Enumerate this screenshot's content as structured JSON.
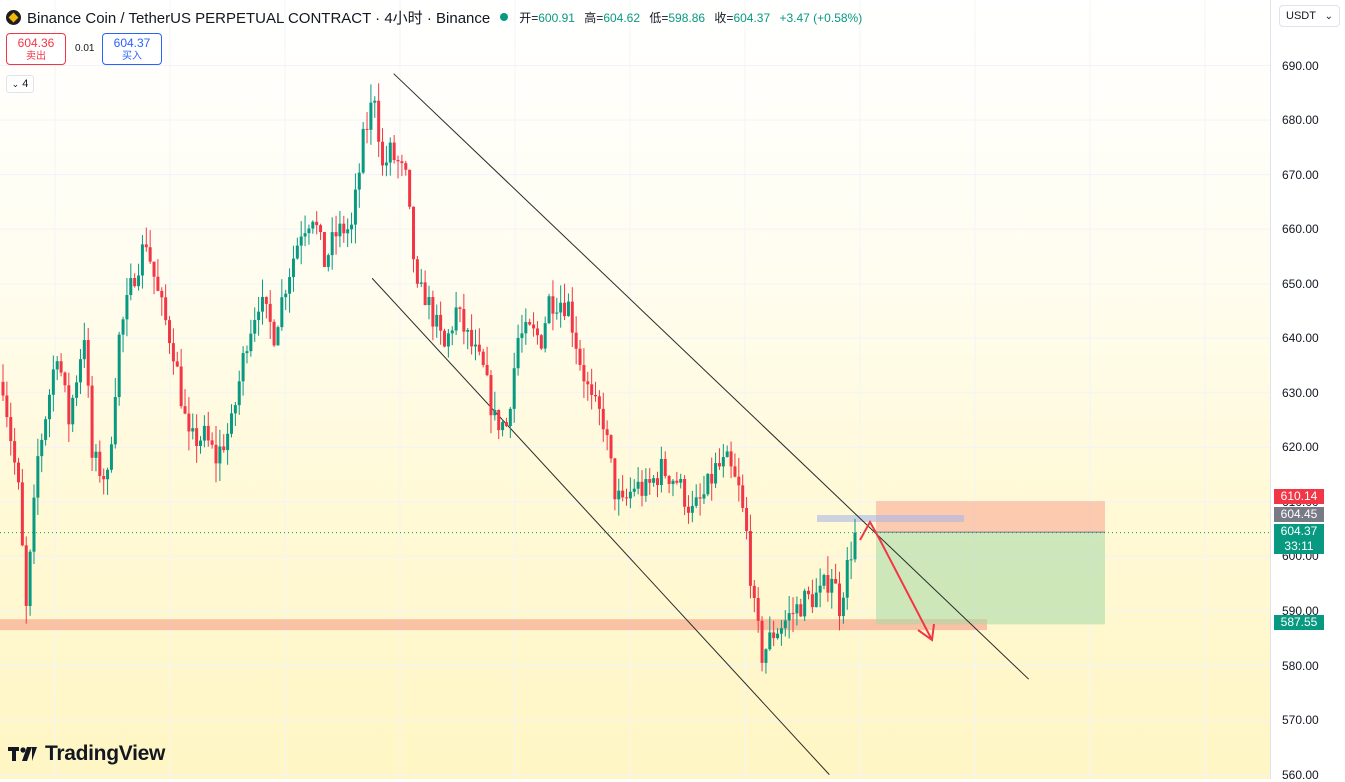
{
  "header": {
    "symbol_title": "Binance Coin / TetherUS PERPETUAL CONTRACT · 4小时 · Binance",
    "open_label": "开=",
    "open_value": "600.91",
    "high_label": "高=",
    "high_value": "604.62",
    "low_label": "低=",
    "low_value": "598.86",
    "close_label": "收=",
    "close_value": "604.37",
    "change": "+3.47 (+0.58%)"
  },
  "trade": {
    "sell_price": "604.36",
    "sell_label": "卖出",
    "spread": "0.01",
    "buy_price": "604.37",
    "buy_label": "买入"
  },
  "indicator_toggle": "4",
  "currency_select": "USDT",
  "price_labels": {
    "stop": "610.14",
    "entry": "604.45",
    "last": "604.37",
    "countdown": "33:11",
    "target": "587.55"
  },
  "logo_text": "TradingView",
  "colors": {
    "up": "#089981",
    "down": "#f23645",
    "accent": "#2962ff"
  },
  "chart_data": {
    "type": "candlestick",
    "timeframe": "4小时",
    "ylim": [
      560,
      693
    ],
    "y_ticks": [
      690,
      680,
      670,
      660,
      650,
      640,
      630,
      620,
      610,
      600,
      590,
      580,
      570,
      560
    ],
    "waypoints": [
      [
        0,
        632
      ],
      [
        4,
        612
      ],
      [
        6,
        590
      ],
      [
        9,
        618
      ],
      [
        14,
        638
      ],
      [
        17,
        625
      ],
      [
        21,
        641
      ],
      [
        23,
        618
      ],
      [
        27,
        614
      ],
      [
        30,
        640
      ],
      [
        34,
        652
      ],
      [
        37,
        658
      ],
      [
        40,
        648
      ],
      [
        44,
        638
      ],
      [
        48,
        621
      ],
      [
        52,
        622
      ],
      [
        55,
        618
      ],
      [
        59,
        624
      ],
      [
        63,
        640
      ],
      [
        66,
        647
      ],
      [
        70,
        641
      ],
      [
        73,
        650
      ],
      [
        77,
        660
      ],
      [
        80,
        663
      ],
      [
        83,
        654
      ],
      [
        86,
        659
      ],
      [
        88,
        660
      ],
      [
        90,
        660
      ],
      [
        93,
        676
      ],
      [
        96,
        685
      ],
      [
        98,
        671
      ],
      [
        100,
        674
      ],
      [
        102,
        672
      ],
      [
        104,
        669
      ],
      [
        107,
        648
      ],
      [
        109,
        648
      ],
      [
        112,
        642
      ],
      [
        114,
        638
      ],
      [
        117,
        645
      ],
      [
        120,
        640
      ],
      [
        124,
        634
      ],
      [
        127,
        625
      ],
      [
        130,
        624
      ],
      [
        133,
        640
      ],
      [
        136,
        641
      ],
      [
        139,
        640
      ],
      [
        141,
        647
      ],
      [
        144,
        647
      ],
      [
        146,
        646
      ],
      [
        149,
        636
      ],
      [
        152,
        628
      ],
      [
        155,
        625
      ],
      [
        158,
        612
      ],
      [
        160,
        609
      ],
      [
        163,
        613
      ],
      [
        166,
        612
      ],
      [
        170,
        616
      ],
      [
        174,
        614
      ],
      [
        178,
        608
      ],
      [
        181,
        611
      ],
      [
        184,
        616
      ],
      [
        187,
        617
      ],
      [
        190,
        612
      ],
      [
        192,
        604
      ],
      [
        194,
        590
      ],
      [
        196,
        582
      ],
      [
        199,
        586
      ],
      [
        203,
        589
      ],
      [
        207,
        592
      ],
      [
        211,
        593
      ],
      [
        214,
        597
      ],
      [
        216,
        591
      ],
      [
        218,
        598
      ],
      [
        220,
        604.37
      ]
    ],
    "support_zone": [
      586.5,
      588.5
    ],
    "channel_upper": [
      [
        0.31,
        688.5
      ],
      [
        0.81,
        577.5
      ]
    ],
    "channel_lower": [
      [
        0.293,
        651
      ],
      [
        0.653,
        560
      ]
    ],
    "short_position": {
      "entry": 604.45,
      "stop": 610.14,
      "target": 587.55
    }
  }
}
